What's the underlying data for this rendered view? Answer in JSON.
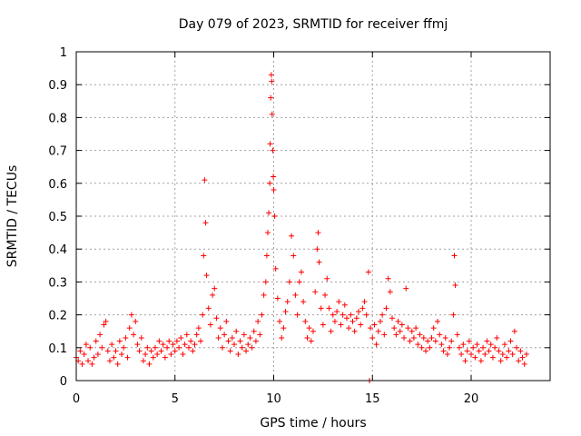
{
  "chart_data": {
    "type": "scatter",
    "title": "Day 079 of 2023, SRMTID for receiver ffmj",
    "xlabel": "GPS time / hours",
    "ylabel": "SRMTID / TECUs",
    "xlim": [
      0,
      24
    ],
    "ylim": [
      0,
      1
    ],
    "xticks": [
      0,
      5,
      10,
      15,
      20
    ],
    "yticks": [
      0,
      0.1,
      0.2,
      0.3,
      0.4,
      0.5,
      0.6,
      0.7,
      0.8,
      0.9,
      1
    ],
    "ytick_labels": [
      "0",
      "0.1",
      "0.2",
      "0.3",
      "0.4",
      "0.5",
      "0.6",
      "0.7",
      "0.8",
      "0.9",
      "1"
    ],
    "grid": true,
    "marker": "+",
    "color": "#ff0000",
    "series": [
      {
        "name": "SRMTID",
        "description": "approximate values read from figure",
        "points": [
          [
            0.0,
            0.07
          ],
          [
            0.1,
            0.06
          ],
          [
            0.2,
            0.09
          ],
          [
            0.3,
            0.05
          ],
          [
            0.4,
            0.08
          ],
          [
            0.5,
            0.11
          ],
          [
            0.6,
            0.06
          ],
          [
            0.7,
            0.1
          ],
          [
            0.8,
            0.05
          ],
          [
            0.9,
            0.07
          ],
          [
            1.0,
            0.12
          ],
          [
            1.1,
            0.08
          ],
          [
            1.2,
            0.14
          ],
          [
            1.3,
            0.1
          ],
          [
            1.4,
            0.17
          ],
          [
            1.5,
            0.18
          ],
          [
            1.6,
            0.09
          ],
          [
            1.7,
            0.06
          ],
          [
            1.8,
            0.11
          ],
          [
            1.9,
            0.07
          ],
          [
            2.0,
            0.09
          ],
          [
            2.1,
            0.05
          ],
          [
            2.2,
            0.12
          ],
          [
            2.3,
            0.08
          ],
          [
            2.4,
            0.1
          ],
          [
            2.5,
            0.13
          ],
          [
            2.6,
            0.07
          ],
          [
            2.7,
            0.16
          ],
          [
            2.8,
            0.2
          ],
          [
            2.9,
            0.14
          ],
          [
            3.0,
            0.18
          ],
          [
            3.1,
            0.11
          ],
          [
            3.2,
            0.09
          ],
          [
            3.3,
            0.13
          ],
          [
            3.4,
            0.06
          ],
          [
            3.5,
            0.08
          ],
          [
            3.6,
            0.1
          ],
          [
            3.7,
            0.05
          ],
          [
            3.8,
            0.09
          ],
          [
            3.9,
            0.07
          ],
          [
            4.0,
            0.1
          ],
          [
            4.1,
            0.08
          ],
          [
            4.2,
            0.12
          ],
          [
            4.3,
            0.09
          ],
          [
            4.4,
            0.11
          ],
          [
            4.5,
            0.07
          ],
          [
            4.6,
            0.1
          ],
          [
            4.7,
            0.12
          ],
          [
            4.8,
            0.08
          ],
          [
            4.9,
            0.11
          ],
          [
            5.0,
            0.09
          ],
          [
            5.1,
            0.12
          ],
          [
            5.2,
            0.1
          ],
          [
            5.3,
            0.13
          ],
          [
            5.4,
            0.08
          ],
          [
            5.5,
            0.11
          ],
          [
            5.6,
            0.14
          ],
          [
            5.7,
            0.1
          ],
          [
            5.8,
            0.12
          ],
          [
            5.9,
            0.09
          ],
          [
            6.0,
            0.11
          ],
          [
            6.1,
            0.14
          ],
          [
            6.2,
            0.16
          ],
          [
            6.3,
            0.12
          ],
          [
            6.4,
            0.2
          ],
          [
            6.45,
            0.38
          ],
          [
            6.5,
            0.61
          ],
          [
            6.55,
            0.48
          ],
          [
            6.6,
            0.32
          ],
          [
            6.7,
            0.22
          ],
          [
            6.8,
            0.17
          ],
          [
            6.9,
            0.26
          ],
          [
            7.0,
            0.28
          ],
          [
            7.1,
            0.19
          ],
          [
            7.2,
            0.13
          ],
          [
            7.3,
            0.16
          ],
          [
            7.4,
            0.1
          ],
          [
            7.5,
            0.14
          ],
          [
            7.6,
            0.18
          ],
          [
            7.7,
            0.12
          ],
          [
            7.8,
            0.09
          ],
          [
            7.9,
            0.13
          ],
          [
            8.0,
            0.11
          ],
          [
            8.1,
            0.15
          ],
          [
            8.2,
            0.08
          ],
          [
            8.3,
            0.12
          ],
          [
            8.4,
            0.1
          ],
          [
            8.5,
            0.14
          ],
          [
            8.6,
            0.09
          ],
          [
            8.7,
            0.11
          ],
          [
            8.8,
            0.13
          ],
          [
            8.9,
            0.1
          ],
          [
            9.0,
            0.15
          ],
          [
            9.1,
            0.12
          ],
          [
            9.2,
            0.18
          ],
          [
            9.3,
            0.14
          ],
          [
            9.4,
            0.2
          ],
          [
            9.5,
            0.26
          ],
          [
            9.6,
            0.3
          ],
          [
            9.65,
            0.38
          ],
          [
            9.7,
            0.45
          ],
          [
            9.75,
            0.51
          ],
          [
            9.8,
            0.6
          ],
          [
            9.82,
            0.72
          ],
          [
            9.85,
            0.86
          ],
          [
            9.88,
            0.93
          ],
          [
            9.9,
            0.91
          ],
          [
            9.92,
            0.81
          ],
          [
            9.95,
            0.7
          ],
          [
            9.98,
            0.62
          ],
          [
            10.0,
            0.58
          ],
          [
            10.05,
            0.5
          ],
          [
            10.1,
            0.34
          ],
          [
            10.2,
            0.25
          ],
          [
            10.3,
            0.18
          ],
          [
            10.4,
            0.13
          ],
          [
            10.5,
            0.16
          ],
          [
            10.6,
            0.21
          ],
          [
            10.7,
            0.24
          ],
          [
            10.8,
            0.3
          ],
          [
            10.9,
            0.44
          ],
          [
            11.0,
            0.38
          ],
          [
            11.1,
            0.26
          ],
          [
            11.2,
            0.2
          ],
          [
            11.3,
            0.3
          ],
          [
            11.4,
            0.33
          ],
          [
            11.5,
            0.24
          ],
          [
            11.6,
            0.18
          ],
          [
            11.7,
            0.13
          ],
          [
            11.8,
            0.16
          ],
          [
            11.9,
            0.12
          ],
          [
            12.0,
            0.15
          ],
          [
            12.1,
            0.27
          ],
          [
            12.2,
            0.4
          ],
          [
            12.25,
            0.45
          ],
          [
            12.3,
            0.36
          ],
          [
            12.4,
            0.22
          ],
          [
            12.5,
            0.17
          ],
          [
            12.6,
            0.26
          ],
          [
            12.7,
            0.31
          ],
          [
            12.8,
            0.22
          ],
          [
            12.9,
            0.15
          ],
          [
            13.0,
            0.2
          ],
          [
            13.1,
            0.18
          ],
          [
            13.2,
            0.21
          ],
          [
            13.3,
            0.24
          ],
          [
            13.4,
            0.17
          ],
          [
            13.5,
            0.2
          ],
          [
            13.6,
            0.23
          ],
          [
            13.7,
            0.19
          ],
          [
            13.8,
            0.16
          ],
          [
            13.9,
            0.2
          ],
          [
            14.0,
            0.18
          ],
          [
            14.1,
            0.15
          ],
          [
            14.2,
            0.19
          ],
          [
            14.3,
            0.21
          ],
          [
            14.4,
            0.17
          ],
          [
            14.5,
            0.22
          ],
          [
            14.6,
            0.24
          ],
          [
            14.7,
            0.2
          ],
          [
            14.8,
            0.33
          ],
          [
            14.85,
            0.0
          ],
          [
            14.9,
            0.16
          ],
          [
            15.0,
            0.13
          ],
          [
            15.1,
            0.17
          ],
          [
            15.2,
            0.11
          ],
          [
            15.3,
            0.15
          ],
          [
            15.4,
            0.18
          ],
          [
            15.5,
            0.2
          ],
          [
            15.6,
            0.14
          ],
          [
            15.7,
            0.22
          ],
          [
            15.8,
            0.31
          ],
          [
            15.9,
            0.27
          ],
          [
            16.0,
            0.19
          ],
          [
            16.1,
            0.16
          ],
          [
            16.2,
            0.14
          ],
          [
            16.3,
            0.18
          ],
          [
            16.4,
            0.15
          ],
          [
            16.5,
            0.17
          ],
          [
            16.6,
            0.13
          ],
          [
            16.7,
            0.28
          ],
          [
            16.8,
            0.16
          ],
          [
            16.9,
            0.12
          ],
          [
            17.0,
            0.15
          ],
          [
            17.1,
            0.13
          ],
          [
            17.2,
            0.16
          ],
          [
            17.3,
            0.11
          ],
          [
            17.4,
            0.14
          ],
          [
            17.5,
            0.1
          ],
          [
            17.6,
            0.13
          ],
          [
            17.7,
            0.09
          ],
          [
            17.8,
            0.12
          ],
          [
            17.9,
            0.1
          ],
          [
            18.0,
            0.13
          ],
          [
            18.1,
            0.16
          ],
          [
            18.2,
            0.12
          ],
          [
            18.3,
            0.18
          ],
          [
            18.4,
            0.14
          ],
          [
            18.5,
            0.11
          ],
          [
            18.6,
            0.09
          ],
          [
            18.7,
            0.13
          ],
          [
            18.8,
            0.08
          ],
          [
            18.9,
            0.1
          ],
          [
            19.0,
            0.12
          ],
          [
            19.1,
            0.2
          ],
          [
            19.15,
            0.38
          ],
          [
            19.2,
            0.29
          ],
          [
            19.3,
            0.14
          ],
          [
            19.4,
            0.1
          ],
          [
            19.5,
            0.08
          ],
          [
            19.6,
            0.11
          ],
          [
            19.7,
            0.06
          ],
          [
            19.8,
            0.09
          ],
          [
            19.9,
            0.12
          ],
          [
            20.0,
            0.08
          ],
          [
            20.1,
            0.1
          ],
          [
            20.2,
            0.07
          ],
          [
            20.3,
            0.11
          ],
          [
            20.4,
            0.09
          ],
          [
            20.5,
            0.06
          ],
          [
            20.6,
            0.1
          ],
          [
            20.7,
            0.08
          ],
          [
            20.8,
            0.12
          ],
          [
            20.9,
            0.09
          ],
          [
            21.0,
            0.11
          ],
          [
            21.1,
            0.07
          ],
          [
            21.2,
            0.1
          ],
          [
            21.3,
            0.13
          ],
          [
            21.4,
            0.09
          ],
          [
            21.5,
            0.06
          ],
          [
            21.6,
            0.08
          ],
          [
            21.7,
            0.11
          ],
          [
            21.8,
            0.07
          ],
          [
            21.9,
            0.09
          ],
          [
            22.0,
            0.12
          ],
          [
            22.1,
            0.08
          ],
          [
            22.2,
            0.15
          ],
          [
            22.3,
            0.1
          ],
          [
            22.4,
            0.06
          ],
          [
            22.5,
            0.09
          ],
          [
            22.6,
            0.07
          ],
          [
            22.7,
            0.05
          ],
          [
            22.8,
            0.08
          ]
        ]
      }
    ]
  }
}
